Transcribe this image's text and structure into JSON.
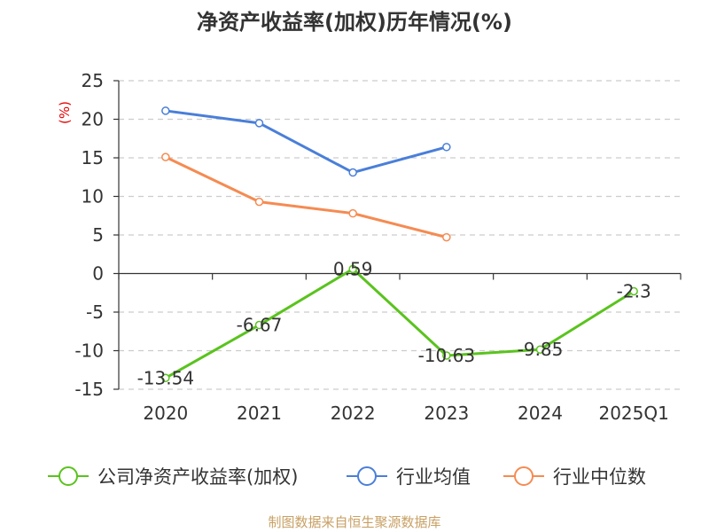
{
  "chart_data": {
    "type": "line",
    "title": "净资产收益率(加权)历年情况(%)",
    "ylabel": "(%)",
    "xlabel": "",
    "categories": [
      "2020",
      "2021",
      "2022",
      "2023",
      "2024",
      "2025Q1"
    ],
    "ylim": [
      -15,
      25
    ],
    "yticks": [
      25,
      20,
      15,
      10,
      5,
      0,
      -5,
      -10,
      -15
    ],
    "grid": true,
    "legend": "bottom",
    "series": [
      {
        "name": "公司净资产收益率(加权)",
        "color": "#5ac31e",
        "values": [
          -13.54,
          -6.67,
          0.59,
          -10.63,
          -9.85,
          -2.3
        ],
        "labels": [
          "-13.54",
          "-6.67",
          "0.59",
          "-10.63",
          "-9.85",
          "-2.3"
        ]
      },
      {
        "name": "行业均值",
        "color": "#4a7fd9",
        "values": [
          21.1,
          19.5,
          13.1,
          16.4,
          null,
          null
        ]
      },
      {
        "name": "行业中位数",
        "color": "#f58b52",
        "values": [
          15.1,
          9.3,
          7.8,
          4.7,
          null,
          null
        ]
      }
    ],
    "source": "制图数据来自恒生聚源数据库"
  }
}
